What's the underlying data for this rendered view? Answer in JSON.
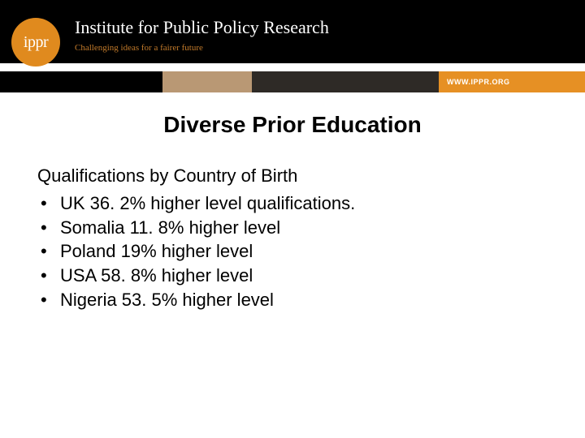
{
  "colors": {
    "logo_bg": "#e08a1e",
    "tagline": "#c27a2a",
    "stripe_tan": "#b99874",
    "stripe_dark": "#2e2a26",
    "stripe_orange": "#e69024"
  },
  "header": {
    "logo_text": "ippr",
    "institute_title": "Institute for Public Policy Research",
    "tagline": "Challenging ideas for a fairer future",
    "website": "WWW.IPPR.ORG"
  },
  "slide": {
    "title": "Diverse Prior Education",
    "subheading": "Qualifications by Country of Birth",
    "bullets": [
      "UK 36. 2% higher level qualifications.",
      "Somalia 11. 8% higher level",
      "Poland 19% higher level",
      "USA 58. 8% higher level",
      "Nigeria 53. 5% higher level"
    ]
  }
}
